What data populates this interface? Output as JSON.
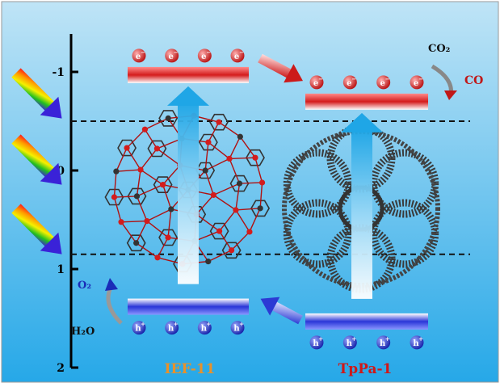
{
  "axis": {
    "ticks": [
      {
        "value": -1,
        "label": "-1"
      },
      {
        "value": 0,
        "label": "0"
      },
      {
        "value": 1,
        "label": "1"
      },
      {
        "value": 2,
        "label": "2"
      }
    ],
    "range": [
      -1.5,
      2.0
    ],
    "dashed_levels": [
      -0.5,
      0.85
    ]
  },
  "materials": [
    {
      "name": "IEF-11",
      "name_color": "#e8912a",
      "cb_level": -1.05,
      "vb_level": 1.3,
      "electron_label": "e",
      "hole_label": "h",
      "charge_sign_e": "−",
      "charge_sign_h": "+",
      "reaction": {
        "reactant": "H₂O",
        "product": "O₂"
      }
    },
    {
      "name": "TpPa-1",
      "name_color": "#d01818",
      "cb_level": -0.78,
      "vb_level": 1.45,
      "electron_label": "e",
      "hole_label": "h",
      "charge_sign_e": "−",
      "charge_sign_h": "+",
      "reaction": {
        "reactant": "CO₂",
        "product": "CO"
      }
    }
  ],
  "colors": {
    "bg_top": "#bfe4f6",
    "bg_bottom": "#26a8e8",
    "cb_band": "#d41c1c",
    "vb_band": "#2a36d8",
    "electron": "#d42020",
    "hole": "#2432c8",
    "transfer_arrow": "#cc1a1a",
    "hole_arrow": "#2c3ad4",
    "excitation_arrow": "#1fa6e6",
    "product_co": "#c01818",
    "product_o2": "#1a2cb8"
  },
  "icons": {
    "light": "rainbow-light-arrow-icon",
    "mof": "ief11-framework-structure",
    "cof": "tppa1-framework-structure"
  }
}
